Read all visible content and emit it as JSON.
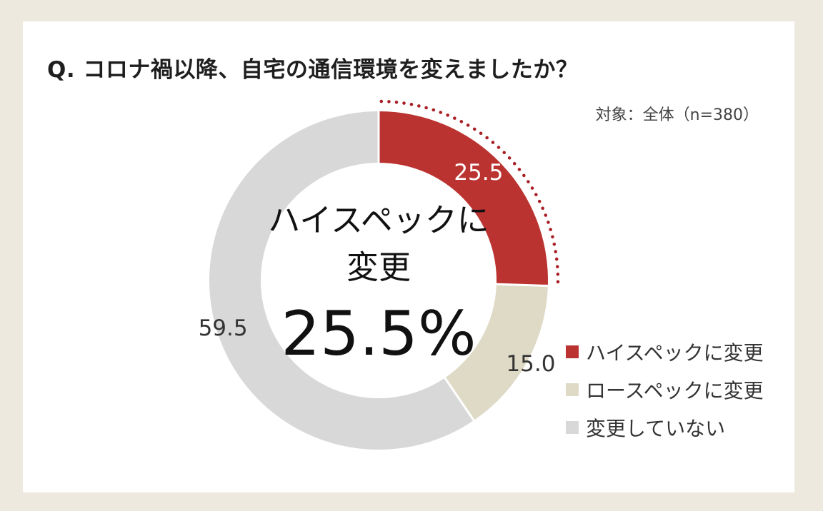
{
  "title": "Q. コロナ禍以降、自宅の通信環境を変えましたか？",
  "subject": "対象：全体（n=380）",
  "center": {
    "label_line1": "ハイスペックに",
    "label_line2": "変更",
    "value": "25.5%"
  },
  "chart_data": {
    "type": "pie",
    "style": "donut",
    "categories": [
      "ハイスペックに変更",
      "ロースペックに変更",
      "変更していない"
    ],
    "values": [
      25.5,
      15.0,
      59.5
    ],
    "value_labels": [
      "25.5",
      "15.0",
      "59.5"
    ],
    "colors": [
      "#bb3331",
      "#dedac6",
      "#d8d8d8"
    ],
    "highlight_color": "#a81e24",
    "legend_position": "bottom-right"
  }
}
